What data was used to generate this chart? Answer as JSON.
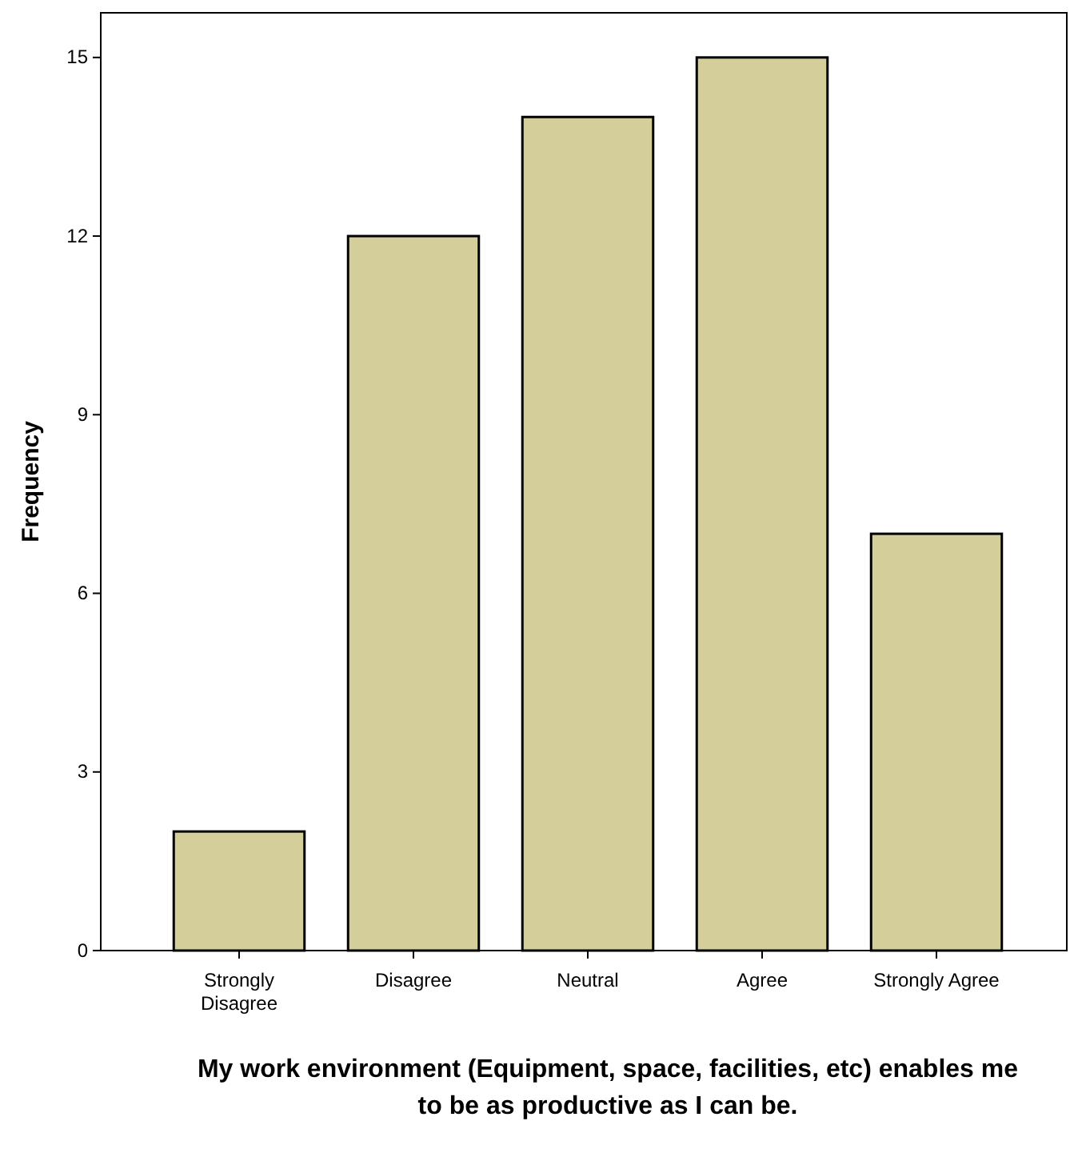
{
  "chart_data": {
    "type": "bar",
    "categories": [
      "Strongly Disagree",
      "Disagree",
      "Neutral",
      "Agree",
      "Strongly Agree"
    ],
    "values": [
      2,
      12,
      14,
      15,
      7
    ],
    "color": "#d4cf9a",
    "ylim": [
      0,
      15.75
    ],
    "yticks": [
      0,
      3,
      6,
      9,
      12,
      15
    ],
    "ylabel": "Frequency",
    "xlabel": "My work environment (Equipment, space, facilities, etc) enables me to be as productive as I can be.",
    "grid": false
  }
}
